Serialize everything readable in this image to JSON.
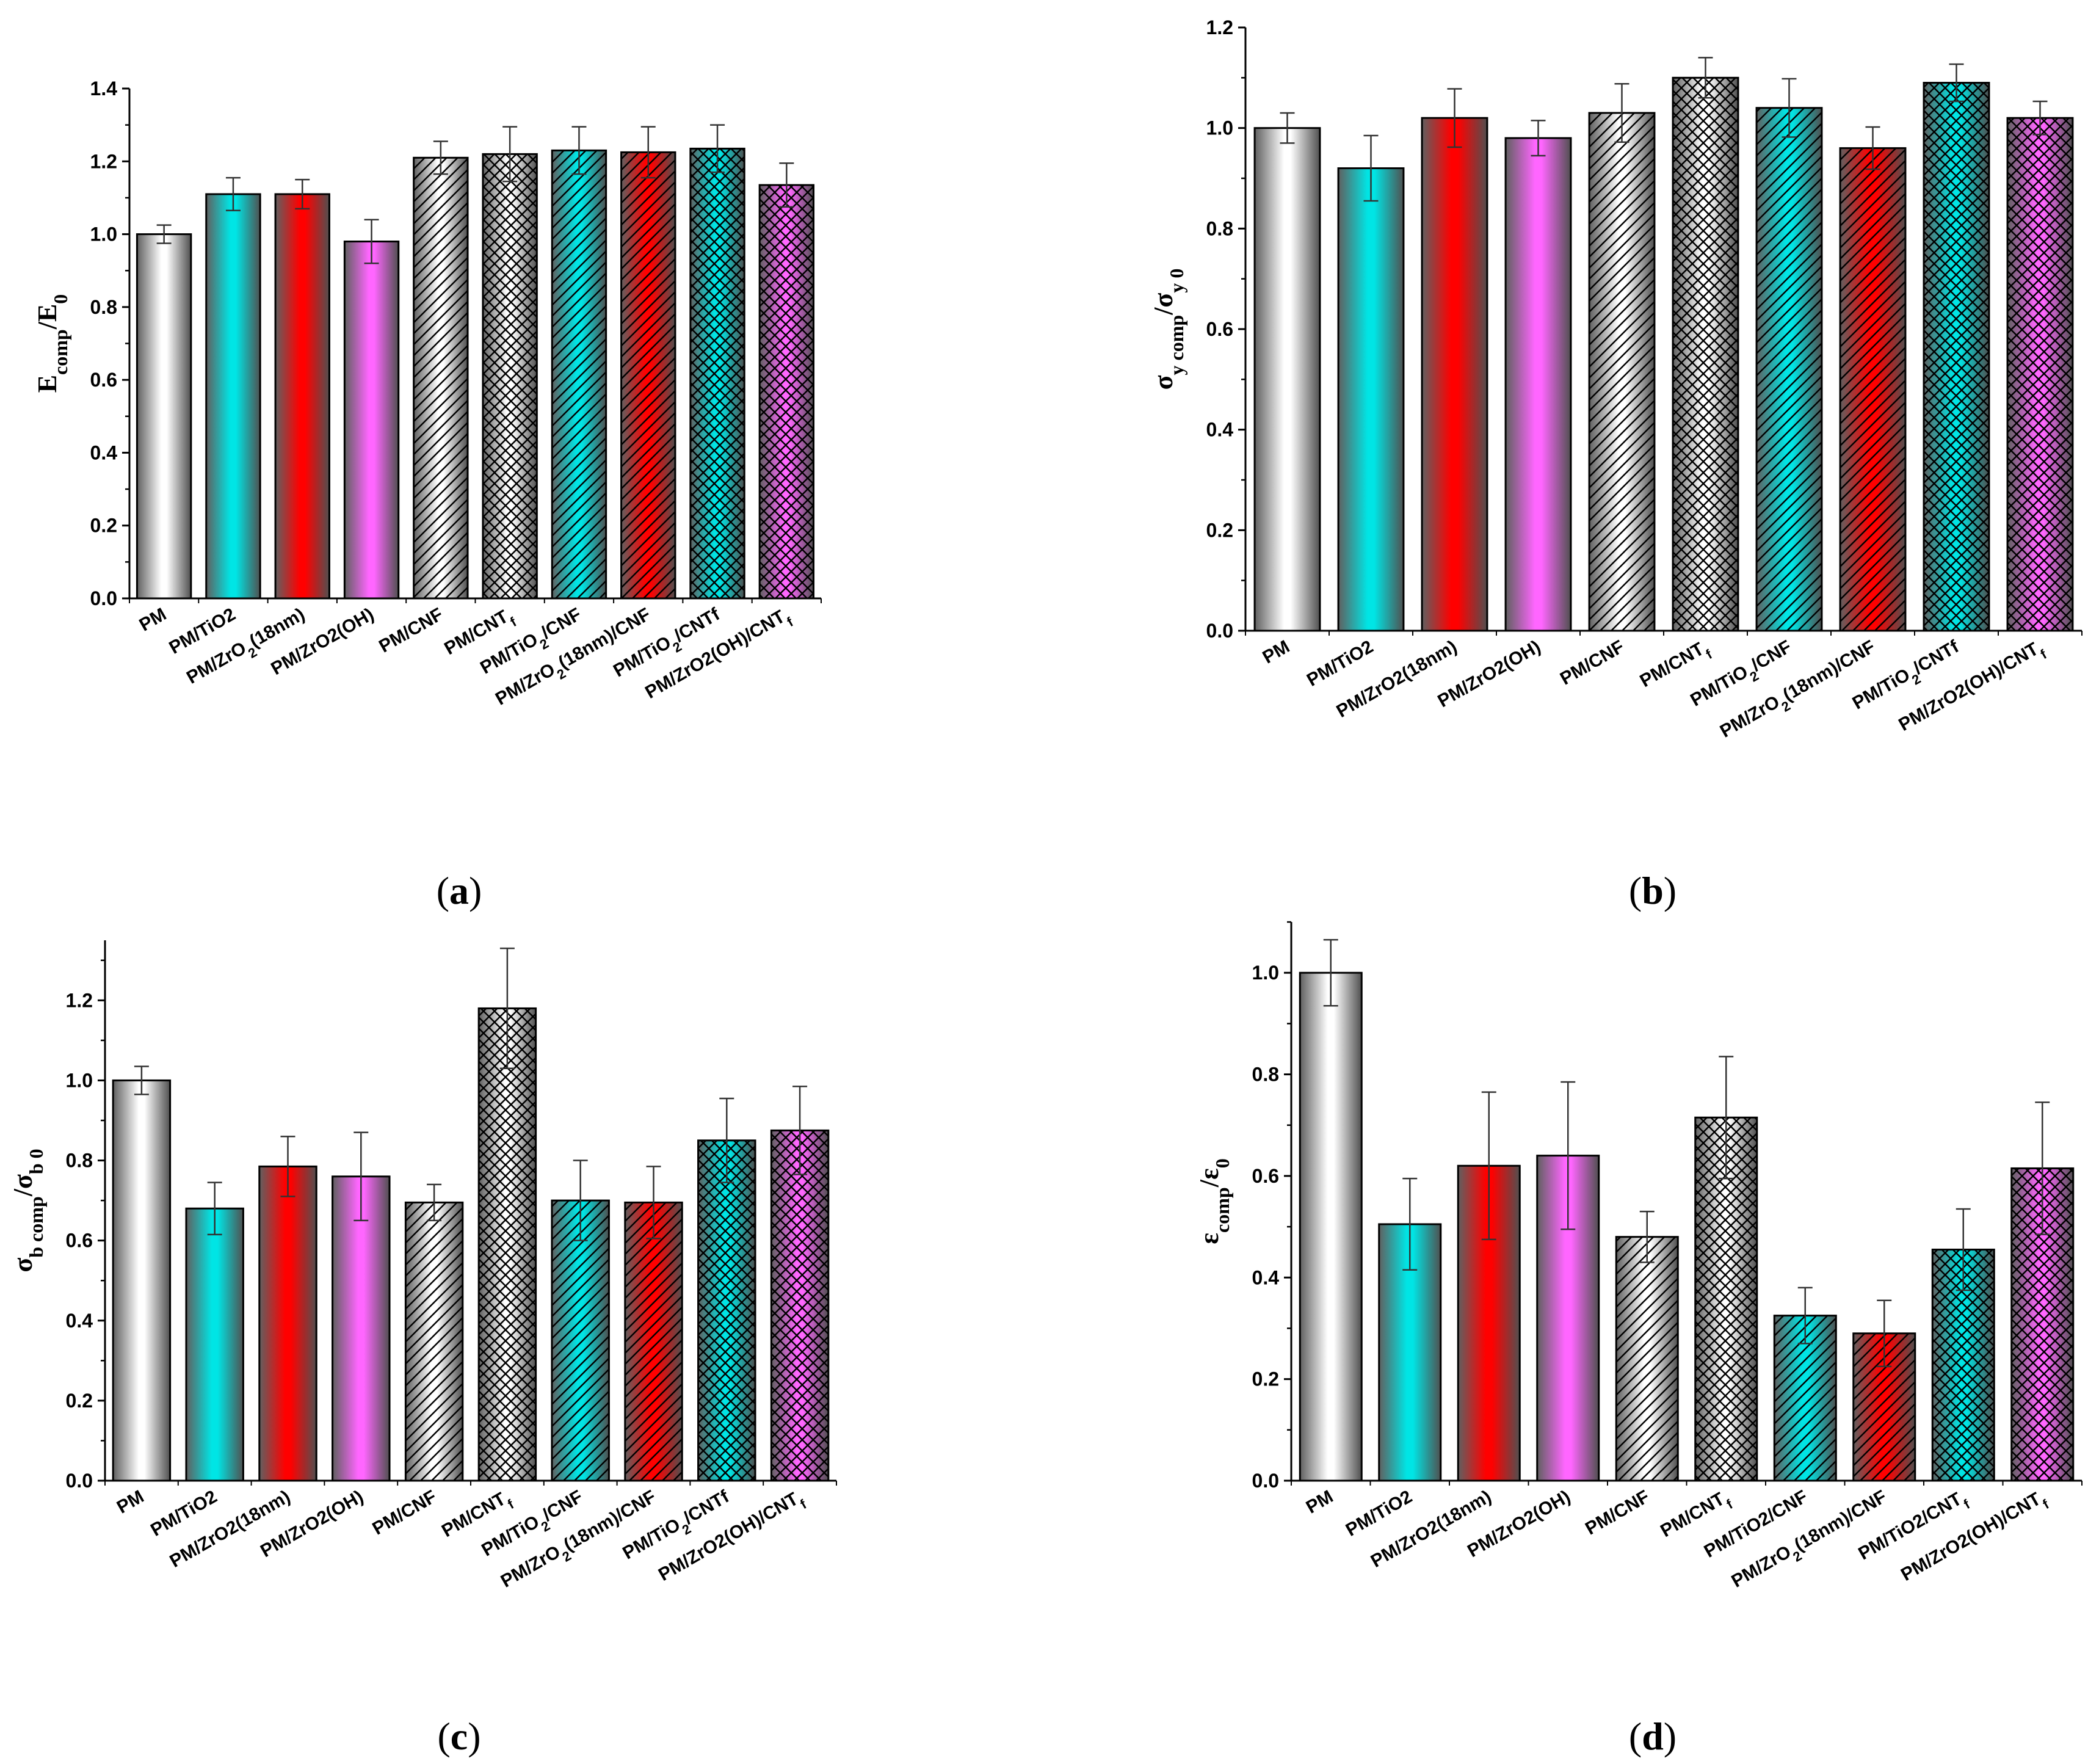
{
  "chart_data": [
    {
      "id": "a",
      "type": "bar",
      "panel_label": "a",
      "ylabel": {
        "main": "E",
        "sub": "comp",
        "sep": "/E",
        "sub2": "0"
      },
      "ylim": [
        0,
        1.4
      ],
      "yticks": [
        0.0,
        0.2,
        0.4,
        0.6,
        0.8,
        1.0,
        1.2,
        1.4
      ],
      "ytick_labels": [
        "0.0",
        "0.2",
        "0.4",
        "0.6",
        "0.8",
        "1.0",
        "1.2",
        "1.4"
      ],
      "categories": [
        {
          "base": "PM",
          "sub": "",
          "tail": ""
        },
        {
          "base": "PM/TiO2",
          "sub": "",
          "tail": ""
        },
        {
          "base": "PM/ZrO",
          "sub": "2",
          "tail": "(18nm)"
        },
        {
          "base": "PM/ZrO2(OH)",
          "sub": "",
          "tail": ""
        },
        {
          "base": "PM/CNF",
          "sub": "",
          "tail": ""
        },
        {
          "base": "PM/CNT",
          "sub": "f",
          "tail": ""
        },
        {
          "base": "PM/TiO",
          "sub": "2",
          "tail": "/CNF"
        },
        {
          "base": "PM/ZrO",
          "sub": "2",
          "tail": "(18nm)/CNF"
        },
        {
          "base": "PM/TiO",
          "sub": "2",
          "tail": "/CNTf"
        },
        {
          "base": "PM/ZrO2(OH)/CNT",
          "sub": "f",
          "tail": ""
        }
      ],
      "values": [
        1.0,
        1.11,
        1.11,
        0.98,
        1.21,
        1.22,
        1.23,
        1.225,
        1.235,
        1.135
      ],
      "errors": [
        0.025,
        0.045,
        0.04,
        0.06,
        0.045,
        0.075,
        0.065,
        0.07,
        0.065,
        0.06
      ]
    },
    {
      "id": "b",
      "type": "bar",
      "panel_label": "b",
      "ylabel": {
        "main": "σ",
        "sub": "y comp",
        "sep": "/σ",
        "sub2": "y 0"
      },
      "ylim": [
        0,
        1.2
      ],
      "yticks": [
        0.0,
        0.2,
        0.4,
        0.6,
        0.8,
        1.0,
        1.2
      ],
      "ytick_labels": [
        "0.0",
        "0.2",
        "0.4",
        "0.6",
        "0.8",
        "1.0",
        "1.2"
      ],
      "categories": [
        {
          "base": "PM",
          "sub": "",
          "tail": ""
        },
        {
          "base": "PM/TiO2",
          "sub": "",
          "tail": ""
        },
        {
          "base": "PM/ZrO2(18nm)",
          "sub": "",
          "tail": ""
        },
        {
          "base": "PM/ZrO2(OH)",
          "sub": "",
          "tail": ""
        },
        {
          "base": "PM/CNF",
          "sub": "",
          "tail": ""
        },
        {
          "base": "PM/CNT",
          "sub": "f",
          "tail": ""
        },
        {
          "base": "PM/TiO",
          "sub": "2",
          "tail": "/CNF"
        },
        {
          "base": "PM/ZrO",
          "sub": "2",
          "tail": "(18nm)/CNF"
        },
        {
          "base": "PM/TiO",
          "sub": "2",
          "tail": "/CNTf"
        },
        {
          "base": "PM/ZrO2(OH)/CNT",
          "sub": "f",
          "tail": ""
        }
      ],
      "values": [
        1.0,
        0.92,
        1.02,
        0.98,
        1.03,
        1.1,
        1.04,
        0.96,
        1.09,
        1.02
      ],
      "errors": [
        0.03,
        0.065,
        0.058,
        0.035,
        0.058,
        0.04,
        0.058,
        0.042,
        0.037,
        0.033
      ]
    },
    {
      "id": "c",
      "type": "bar",
      "panel_label": "c",
      "ylabel": {
        "main": "σ",
        "sub": "b comp",
        "sep": "/σ",
        "sub2": "b 0"
      },
      "ylim": [
        0,
        1.35
      ],
      "yticks": [
        0.0,
        0.2,
        0.4,
        0.6,
        0.8,
        1.0,
        1.2
      ],
      "ytick_labels": [
        "0.0",
        "0.2",
        "0.4",
        "0.6",
        "0.8",
        "1.0",
        "1.2"
      ],
      "categories": [
        {
          "base": "PM",
          "sub": "",
          "tail": ""
        },
        {
          "base": "PM/TiO2",
          "sub": "",
          "tail": ""
        },
        {
          "base": "PM/ZrO2(18nm)",
          "sub": "",
          "tail": ""
        },
        {
          "base": "PM/ZrO2(OH)",
          "sub": "",
          "tail": ""
        },
        {
          "base": "PM/CNF",
          "sub": "",
          "tail": ""
        },
        {
          "base": "PM/CNT",
          "sub": "f",
          "tail": ""
        },
        {
          "base": "PM/TiO",
          "sub": "2",
          "tail": "/CNF"
        },
        {
          "base": "PM/ZrO",
          "sub": "2",
          "tail": "(18nm)/CNF"
        },
        {
          "base": "PM/TiO",
          "sub": "2",
          "tail": "/CNTf"
        },
        {
          "base": "PM/ZrO2(OH)/CNT",
          "sub": "f",
          "tail": ""
        }
      ],
      "values": [
        1.0,
        0.68,
        0.785,
        0.76,
        0.695,
        1.18,
        0.7,
        0.695,
        0.85,
        0.875
      ],
      "errors": [
        0.035,
        0.065,
        0.075,
        0.11,
        0.045,
        0.15,
        0.1,
        0.09,
        0.105,
        0.11
      ]
    },
    {
      "id": "d",
      "type": "bar",
      "panel_label": "d",
      "ylabel": {
        "main": "ε",
        "sub": "comp",
        "sep": "/ε",
        "sub2": "0"
      },
      "ylim": [
        0,
        1.1
      ],
      "yticks": [
        0.0,
        0.2,
        0.4,
        0.6,
        0.8,
        1.0
      ],
      "ytick_labels": [
        "0.0",
        "0.2",
        "0.4",
        "0.6",
        "0.8",
        "1.0"
      ],
      "categories": [
        {
          "base": "PM",
          "sub": "",
          "tail": ""
        },
        {
          "base": "PM/TiO2",
          "sub": "",
          "tail": ""
        },
        {
          "base": "PM/ZrO2(18nm)",
          "sub": "",
          "tail": ""
        },
        {
          "base": "PM/ZrO2(OH)",
          "sub": "",
          "tail": ""
        },
        {
          "base": "PM/CNF",
          "sub": "",
          "tail": ""
        },
        {
          "base": "PM/CNT",
          "sub": "f",
          "tail": ""
        },
        {
          "base": "PM/TiO2/CNF",
          "sub": "",
          "tail": ""
        },
        {
          "base": "PM/ZrO",
          "sub": "2",
          "tail": "(18nm)/CNF"
        },
        {
          "base": "PM/TiO2/CNT",
          "sub": "f",
          "tail": ""
        },
        {
          "base": "PM/ZrO2(OH)/CNT",
          "sub": "f",
          "tail": ""
        }
      ],
      "values": [
        1.0,
        0.505,
        0.62,
        0.64,
        0.48,
        0.715,
        0.325,
        0.29,
        0.455,
        0.615
      ],
      "errors": [
        0.065,
        0.09,
        0.145,
        0.145,
        0.05,
        0.12,
        0.055,
        0.065,
        0.08,
        0.13
      ]
    }
  ],
  "bar_styles": [
    {
      "color": "#ffffff",
      "pattern": "none"
    },
    {
      "color": "#00e5e5",
      "pattern": "none"
    },
    {
      "color": "#ff0000",
      "pattern": "none"
    },
    {
      "color": "#ff66ff",
      "pattern": "none"
    },
    {
      "color": "#ffffff",
      "pattern": "diag"
    },
    {
      "color": "#ffffff",
      "pattern": "cross"
    },
    {
      "color": "#00e5e5",
      "pattern": "diag"
    },
    {
      "color": "#ff0000",
      "pattern": "diag"
    },
    {
      "color": "#00e5e5",
      "pattern": "cross"
    },
    {
      "color": "#ff66ff",
      "pattern": "cross"
    }
  ]
}
